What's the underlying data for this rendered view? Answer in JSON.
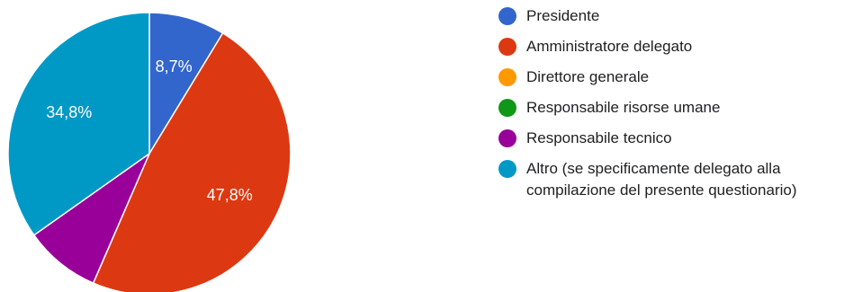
{
  "chart_data": {
    "type": "pie",
    "slices": [
      {
        "label": "Presidente",
        "value": 8.7,
        "value_label": "8,7%",
        "color": "#3366cc"
      },
      {
        "label": "Amministratore delegato",
        "value": 47.8,
        "value_label": "47,8%",
        "color": "#dc3912"
      },
      {
        "label": "Direttore generale",
        "value": 0,
        "value_label": "",
        "color": "#ff9900"
      },
      {
        "label": "Responsabile risorse umane",
        "value": 0,
        "value_label": "",
        "color": "#109618"
      },
      {
        "label": "Responsabile tecnico",
        "value": 8.7,
        "value_label": "",
        "color": "#990099"
      },
      {
        "label": "Altro (se specificamente delegato alla compilazione del presente questionario)",
        "value": 34.8,
        "value_label": "34,8%",
        "color": "#0099c6"
      }
    ],
    "legend_position": "right",
    "start_angle_deg": 90,
    "direction": "clockwise"
  }
}
